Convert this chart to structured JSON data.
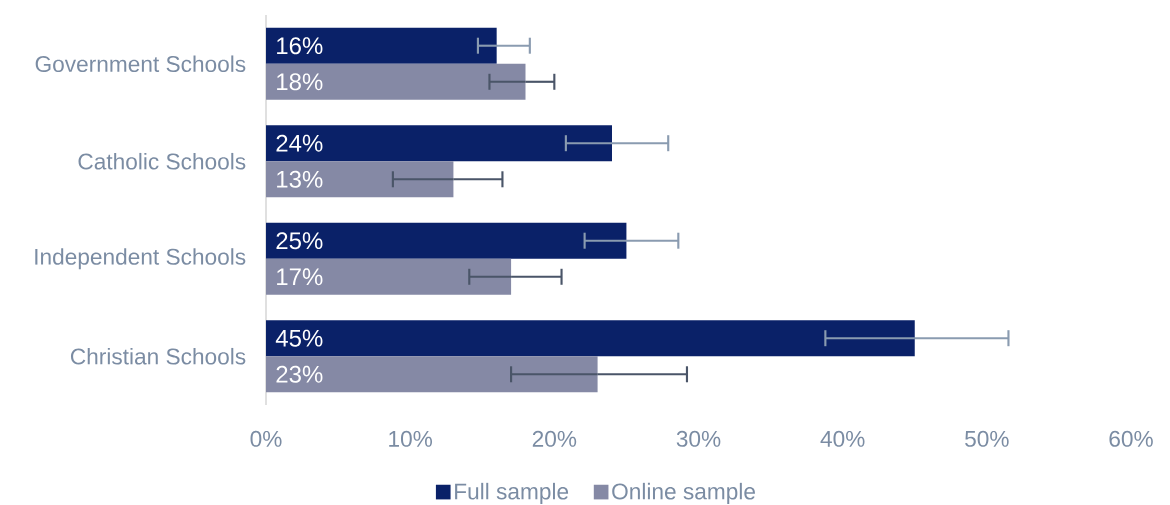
{
  "chart_data": {
    "type": "bar",
    "orientation": "horizontal",
    "categories": [
      "Government Schools",
      "Catholic Schools",
      "Independent Schools",
      "Christian Schools"
    ],
    "series": [
      {
        "name": "Full sample",
        "color": "#0a2168",
        "values": [
          16,
          24,
          25,
          45
        ],
        "value_labels": [
          "16%",
          "24%",
          "25%",
          "45%"
        ],
        "errors": [
          [
            14.7,
            18.3
          ],
          [
            20.8,
            27.9
          ],
          [
            22.1,
            28.6
          ],
          [
            38.8,
            51.5
          ]
        ]
      },
      {
        "name": "Online sample",
        "color": "#8589a5",
        "values": [
          18,
          13,
          17,
          23
        ],
        "value_labels": [
          "18%",
          "13%",
          "17%",
          "23%"
        ],
        "errors": [
          [
            15.5,
            20.0
          ],
          [
            8.8,
            16.4
          ],
          [
            14.1,
            20.5
          ],
          [
            17.0,
            29.2
          ]
        ]
      }
    ],
    "xlim": [
      0,
      60
    ],
    "xticks": [
      {
        "value": 0,
        "label": "0%"
      },
      {
        "value": 10,
        "label": "10%"
      },
      {
        "value": 20,
        "label": "20%"
      },
      {
        "value": 30,
        "label": "30%"
      },
      {
        "value": 40,
        "label": "40%"
      },
      {
        "value": 50,
        "label": "50%"
      },
      {
        "value": 60,
        "label": "60%"
      }
    ],
    "legend": "bottom",
    "grid": false
  }
}
